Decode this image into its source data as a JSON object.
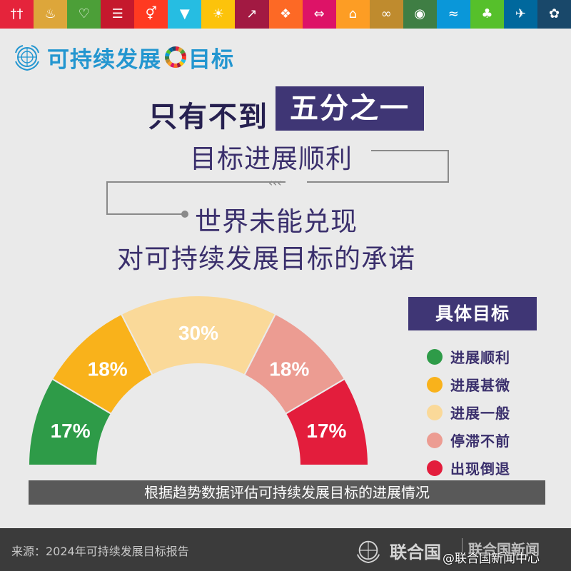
{
  "sdg_tiles": [
    {
      "color": "#e5243b",
      "icon": "people-icon",
      "glyph": "††"
    },
    {
      "color": "#dda63a",
      "icon": "bowl-icon",
      "glyph": "♨"
    },
    {
      "color": "#4c9f38",
      "icon": "heartbeat-icon",
      "glyph": "♡"
    },
    {
      "color": "#c5192d",
      "icon": "book-icon",
      "glyph": "☰"
    },
    {
      "color": "#ff3a21",
      "icon": "gender-icon",
      "glyph": "⚥"
    },
    {
      "color": "#26bde2",
      "icon": "water-drop-icon",
      "glyph": "▼"
    },
    {
      "color": "#fcc30b",
      "icon": "sun-icon",
      "glyph": "☀"
    },
    {
      "color": "#a21942",
      "icon": "growth-chart-icon",
      "glyph": "↗"
    },
    {
      "color": "#fd6925",
      "icon": "cubes-icon",
      "glyph": "❖"
    },
    {
      "color": "#dd1367",
      "icon": "equality-arrows-icon",
      "glyph": "⇔"
    },
    {
      "color": "#fd9d24",
      "icon": "city-icon",
      "glyph": "⌂"
    },
    {
      "color": "#bf8b2e",
      "icon": "infinity-icon",
      "glyph": "∞"
    },
    {
      "color": "#3f7e44",
      "icon": "eye-globe-icon",
      "glyph": "◉"
    },
    {
      "color": "#0a97d9",
      "icon": "fish-icon",
      "glyph": "≈"
    },
    {
      "color": "#56c02b",
      "icon": "tree-icon",
      "glyph": "♣"
    },
    {
      "color": "#00689d",
      "icon": "dove-icon",
      "glyph": "✈"
    },
    {
      "color": "#19486a",
      "icon": "flower-icon",
      "glyph": "✿"
    }
  ],
  "header": {
    "prefix": "可持续发展",
    "suffix": "目标"
  },
  "headline": {
    "lead": "只有不到",
    "highlight": "五分之一",
    "line1": "目标进展顺利",
    "line2": "世界未能兑现",
    "line3": "对可持续发展目标的承诺"
  },
  "chart_data": {
    "type": "pie",
    "variant": "half-donut",
    "caption": "根据趋势数据评估可持续发展目标的进展情况",
    "legend_title": "具体目标",
    "legend_position": "right",
    "series": [
      {
        "name": "进展顺利",
        "value": 17,
        "label": "17%",
        "color": "#2e9b48",
        "label_color": "#ffffff"
      },
      {
        "name": "进展甚微",
        "value": 18,
        "label": "18%",
        "color": "#f9b21b",
        "label_color": "#ffffff"
      },
      {
        "name": "进展一般",
        "value": 30,
        "label": "30%",
        "color": "#fad999",
        "label_color": "#ffffff"
      },
      {
        "name": "停滞不前",
        "value": 18,
        "label": "18%",
        "color": "#ec9c92",
        "label_color": "#ffffff"
      },
      {
        "name": "出现倒退",
        "value": 17,
        "label": "17%",
        "color": "#e31d3c",
        "label_color": "#ffffff"
      }
    ]
  },
  "footer": {
    "source": "来源：2024年可持续发展目标报告",
    "brand": "联合国",
    "brand_secondary": "联合国新闻",
    "watermark": "@联合国新闻中心"
  }
}
